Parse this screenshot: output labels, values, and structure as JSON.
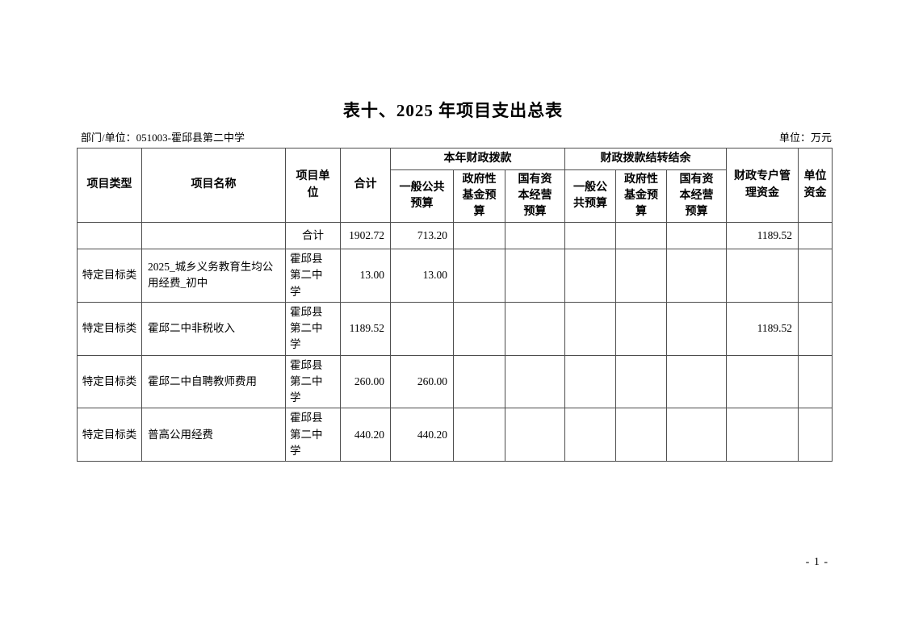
{
  "page": {
    "title": "表十、2025 年项目支出总表",
    "meta_left": "部门/单位：051003-霍邱县第二中学",
    "meta_right": "单位：万元",
    "page_number": "- 1 -"
  },
  "table": {
    "header": {
      "project_type": "项目类型",
      "project_name": "项目名称",
      "project_unit": "项目单\n位",
      "total": "合计",
      "group_current_year": "本年财政拨款",
      "group_carryover": "财政拨款结转结余",
      "cur_general_public": "一般公共\n预算",
      "cur_gov_fund": "政府性\n基金预\n算",
      "cur_state_capital": "国有资\n本经营\n预算",
      "carry_general_public": "一般公\n共预算",
      "carry_gov_fund": "政府性\n基金预\n算",
      "carry_state_capital": "国有资\n本经营\n预算",
      "fiscal_special_account": "财政专户管\n理资金",
      "unit_funds": "单位\n资金"
    },
    "rows": [
      {
        "cells": [
          "",
          "",
          "合计",
          "1902.72",
          "713.20",
          "",
          "",
          "",
          "",
          "",
          "1189.52",
          ""
        ]
      },
      {
        "cells": [
          "特定目标类",
          "2025_城乡义务教育生均公用经费_初中",
          "霍邱县第二中学",
          "13.00",
          "13.00",
          "",
          "",
          "",
          "",
          "",
          "",
          ""
        ]
      },
      {
        "cells": [
          "特定目标类",
          "霍邱二中非税收入",
          "霍邱县第二中学",
          "1189.52",
          "",
          "",
          "",
          "",
          "",
          "",
          "1189.52",
          ""
        ]
      },
      {
        "cells": [
          "特定目标类",
          "霍邱二中自聘教师费用",
          "霍邱县第二中学",
          "260.00",
          "260.00",
          "",
          "",
          "",
          "",
          "",
          "",
          ""
        ]
      },
      {
        "cells": [
          "特定目标类",
          "普高公用经费",
          "霍邱县第二中学",
          "440.20",
          "440.20",
          "",
          "",
          "",
          "",
          "",
          "",
          ""
        ]
      }
    ]
  }
}
